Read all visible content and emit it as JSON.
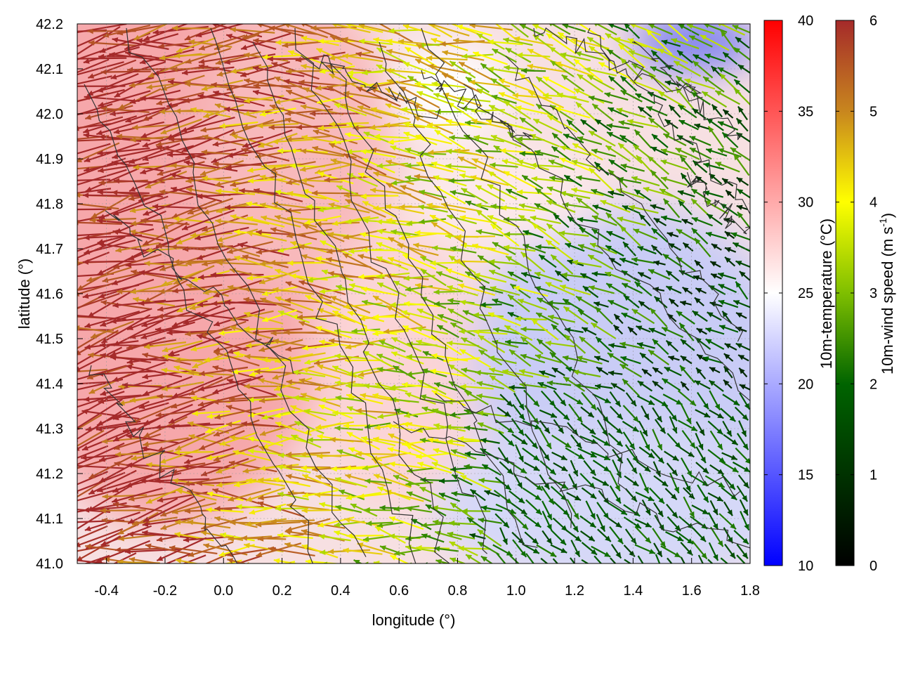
{
  "chart_data": {
    "type": "heatmap",
    "xlabel": "longitude (°)",
    "ylabel": "latitude (°)",
    "xlim": [
      -0.5,
      1.8
    ],
    "ylim": [
      41.0,
      42.2
    ],
    "x_ticks": [
      "-0.4",
      "-0.2",
      "0.0",
      "0.2",
      "0.4",
      "0.6",
      "0.8",
      "1.0",
      "1.2",
      "1.4",
      "1.6",
      "1.8"
    ],
    "y_ticks": [
      "41.0",
      "41.1",
      "41.2",
      "41.3",
      "41.4",
      "41.5",
      "41.6",
      "41.7",
      "41.8",
      "41.9",
      "42.0",
      "42.1",
      "42.2"
    ],
    "grid": true,
    "layers": [
      {
        "kind": "filled-field",
        "variable": "10m-temperature",
        "colorbar_label": "10m-temperature (°C)",
        "range": [
          10,
          40
        ],
        "ticks": [
          "10",
          "15",
          "20",
          "25",
          "30",
          "35",
          "40"
        ],
        "colormap": [
          "#0000ff",
          "#ffffff",
          "#ff0000"
        ],
        "regions": [
          {
            "description_values": "warm west",
            "temperature": 31
          },
          {
            "description_values": "cool southeast",
            "temperature": 19
          },
          {
            "description_values": "cold north-east corner",
            "temperature": 13
          }
        ]
      },
      {
        "kind": "vector-field",
        "variable": "10m-wind speed",
        "colorbar_label": "10m-wind speed (m s",
        "colorbar_label_sup": "-1",
        "colorbar_label_end": ")",
        "range": [
          0,
          6
        ],
        "ticks": [
          "0",
          "1",
          "2",
          "3",
          "4",
          "5",
          "6"
        ],
        "colormap": [
          "#000000",
          "#006400",
          "#7fbf00",
          "#ffff00",
          "#c8861e",
          "#a52a2a"
        ],
        "dominant_direction": "toward west-north-west",
        "max_speed_region": "west",
        "min_speed_region": "southeast"
      },
      {
        "kind": "contour",
        "variable": "terrain",
        "color": "#333333"
      }
    ]
  }
}
